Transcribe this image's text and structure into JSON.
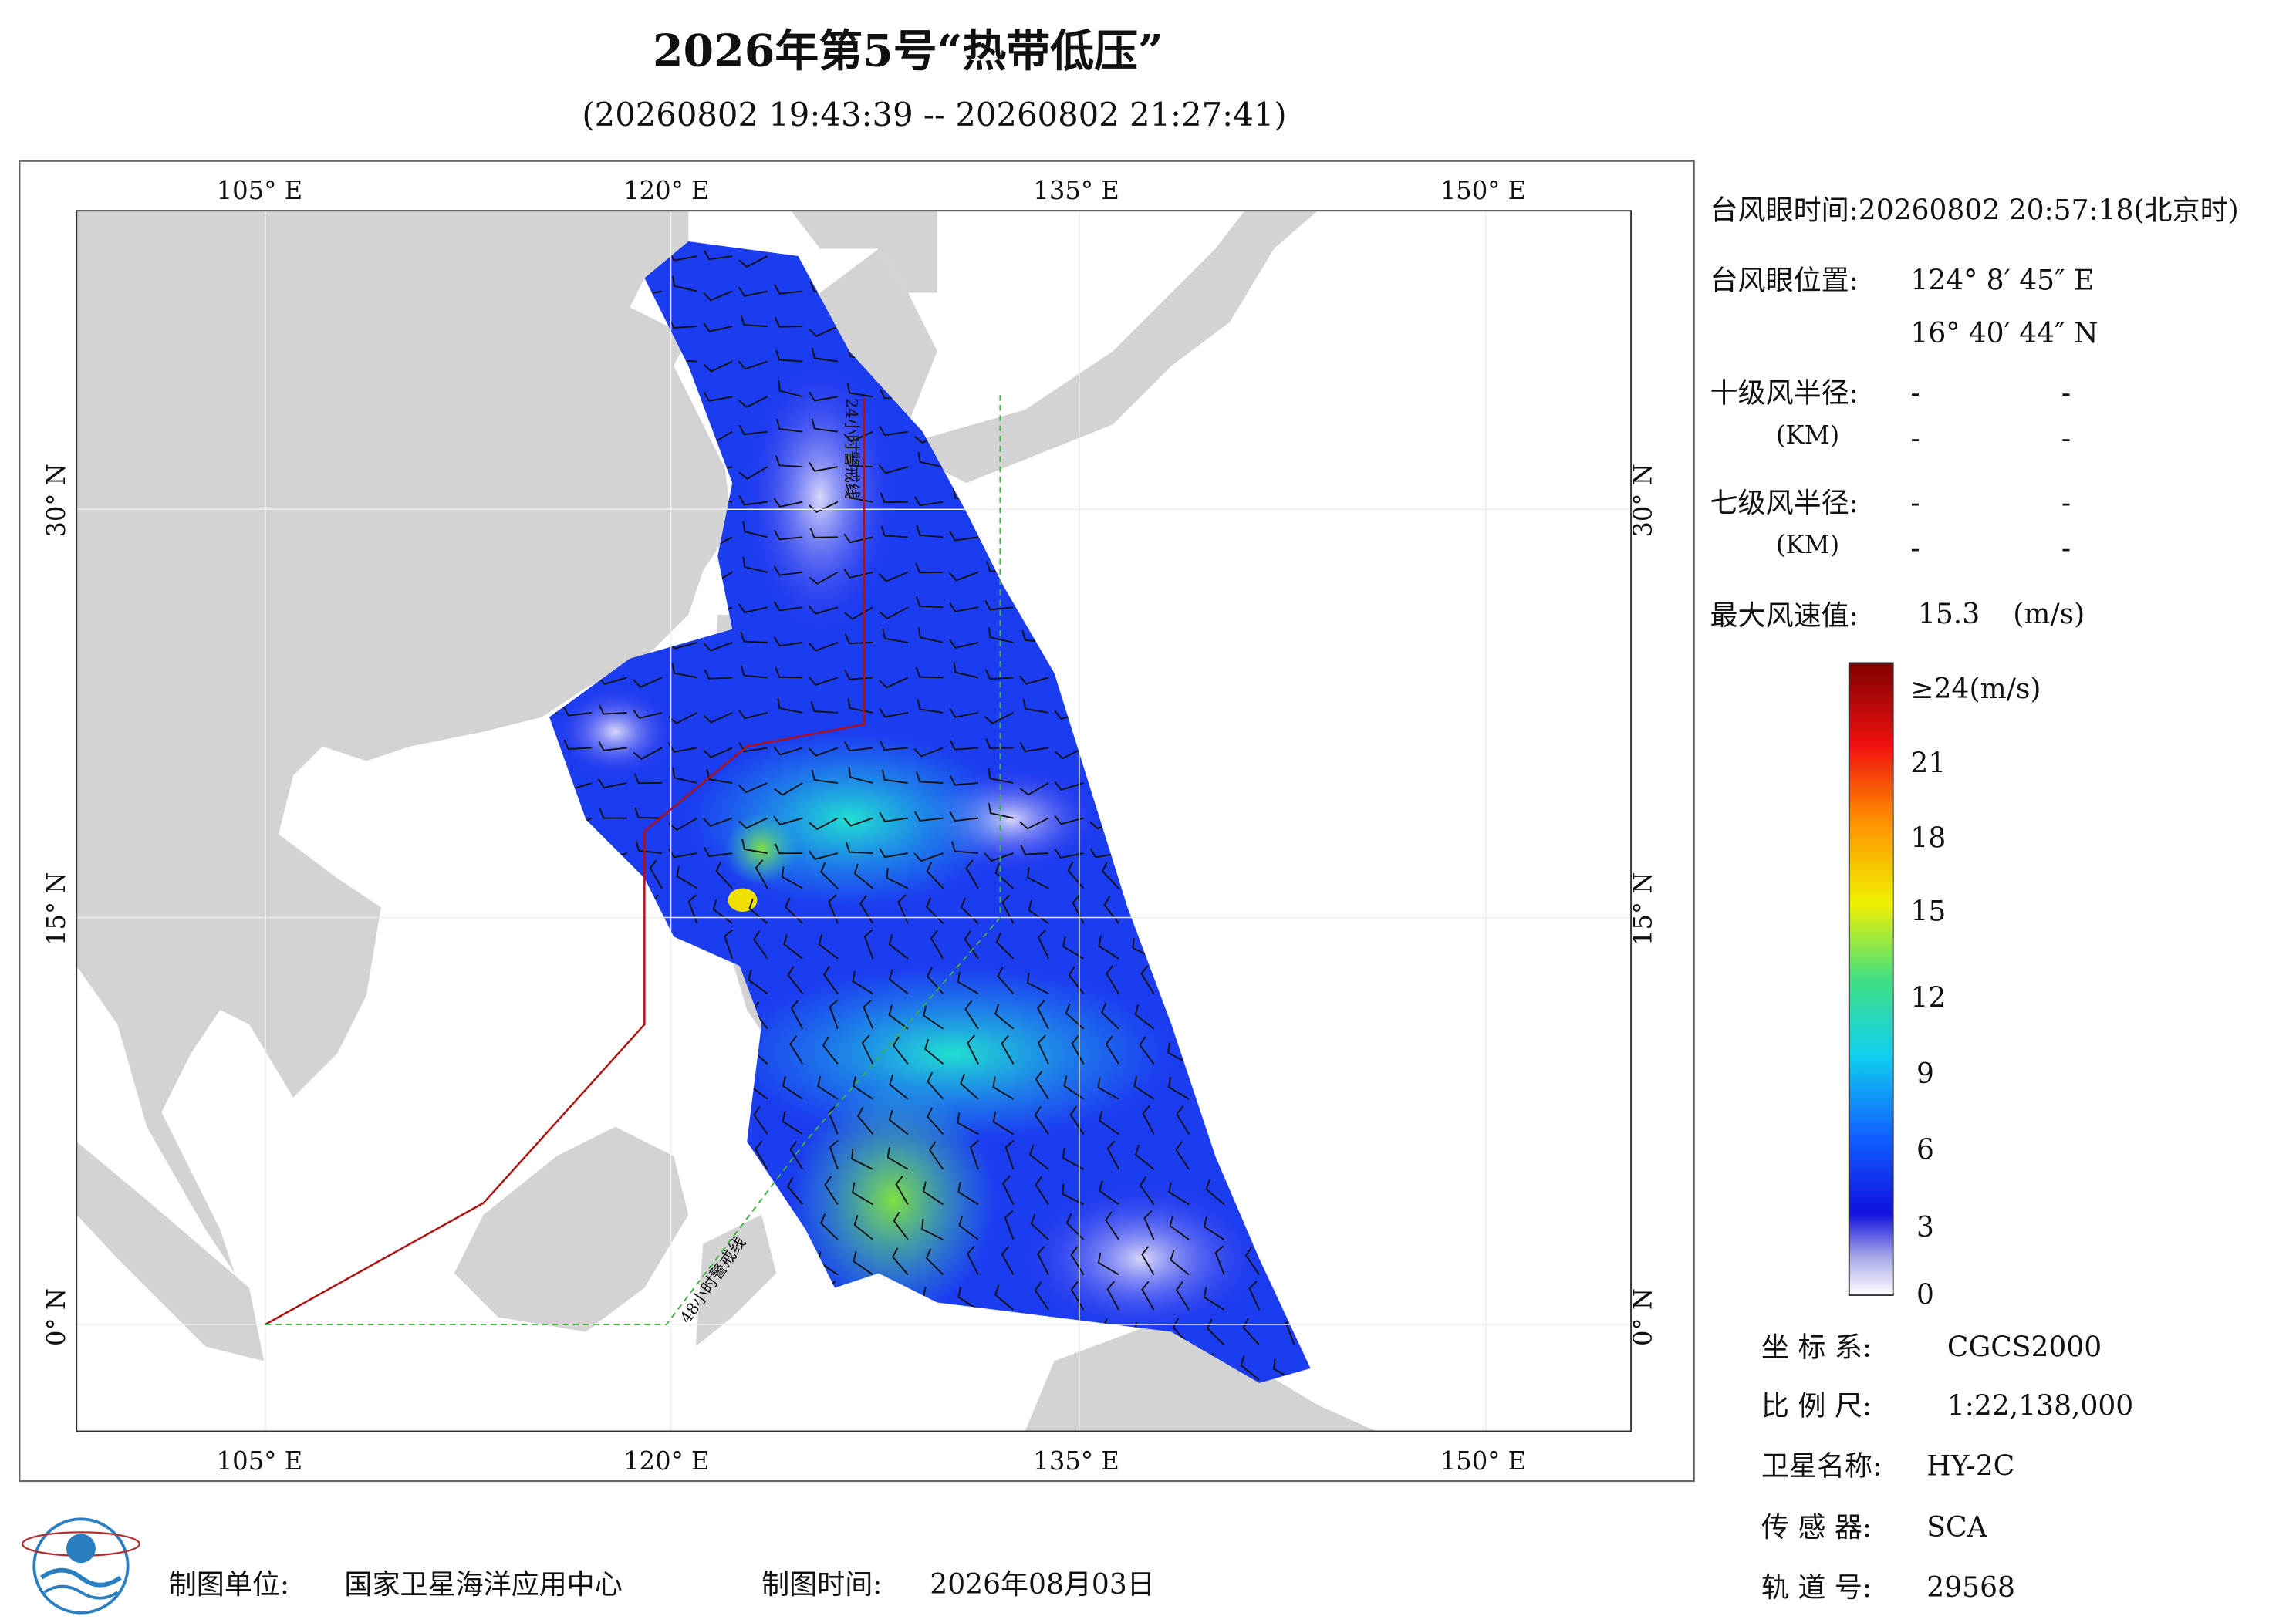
{
  "header": {
    "title": "2026年第5号“热带低压”",
    "subtitle": "(20260802 19:43:39 -- 20260802 21:27:41)"
  },
  "map": {
    "lon_ticks": [
      "105° E",
      "120° E",
      "135° E",
      "150° E"
    ],
    "lat_ticks": [
      "30° N",
      "15° N",
      "0° N"
    ],
    "warning_lines": [
      "24小时警戒线",
      "48小时警戒线"
    ]
  },
  "info": {
    "eye_time_label": "台风眼时间:",
    "eye_time": "20260802 20:57:18(北京时)",
    "eye_position_label": "台风眼位置:",
    "eye_lon": "124° 8′ 45″ E",
    "eye_lat": "16° 40′ 44″ N",
    "level10_label": "十级风半径:",
    "level10_unit": "(KM)",
    "level10_values": [
      "-",
      "-",
      "-",
      "-"
    ],
    "level7_label": "七级风半径:",
    "level7_unit": "(KM)",
    "level7_values": [
      "-",
      "-",
      "-",
      "-"
    ],
    "max_wind_label": "最大风速值:",
    "max_wind": "15.3",
    "max_wind_unit": "(m/s)"
  },
  "colorbar": {
    "ticks": [
      "≥24(m/s)",
      "21",
      "18",
      "15",
      "12",
      "9",
      "6",
      "3",
      "0"
    ]
  },
  "meta": {
    "rows": [
      [
        "坐 标 系:",
        "CGCS2000"
      ],
      [
        "比 例 尺:",
        "1:22,138,000"
      ],
      [
        "卫星名称:",
        "HY-2C"
      ],
      [
        "传 感 器:",
        "SCA"
      ],
      [
        "轨 道 号:",
        "29568"
      ]
    ]
  },
  "footer": {
    "unit_label": "制图单位:",
    "unit": "国家卫星海洋应用中心",
    "date_label": "制图时间:",
    "date": "2026年08月03日"
  }
}
